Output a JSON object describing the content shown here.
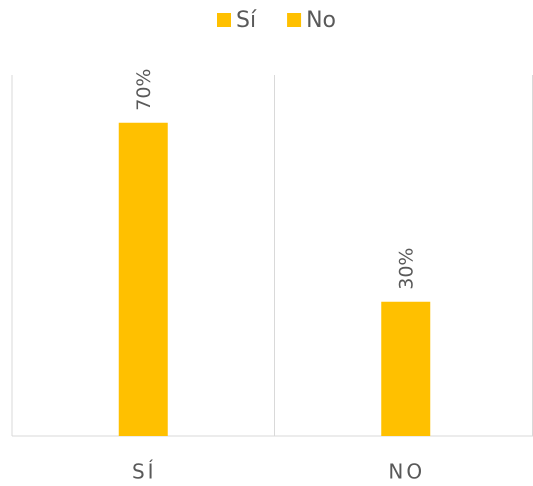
{
  "chart_data": {
    "type": "bar",
    "categories": [
      "SÍ",
      "NO"
    ],
    "series": [
      {
        "name": "Sí",
        "color": "#FFC000",
        "values": [
          70,
          null
        ],
        "value_labels": [
          "70%",
          null
        ]
      },
      {
        "name": "No",
        "color": "#FFC000",
        "values": [
          null,
          30
        ],
        "value_labels": [
          null,
          "30%"
        ]
      }
    ],
    "ylim": [
      0,
      80
    ]
  }
}
